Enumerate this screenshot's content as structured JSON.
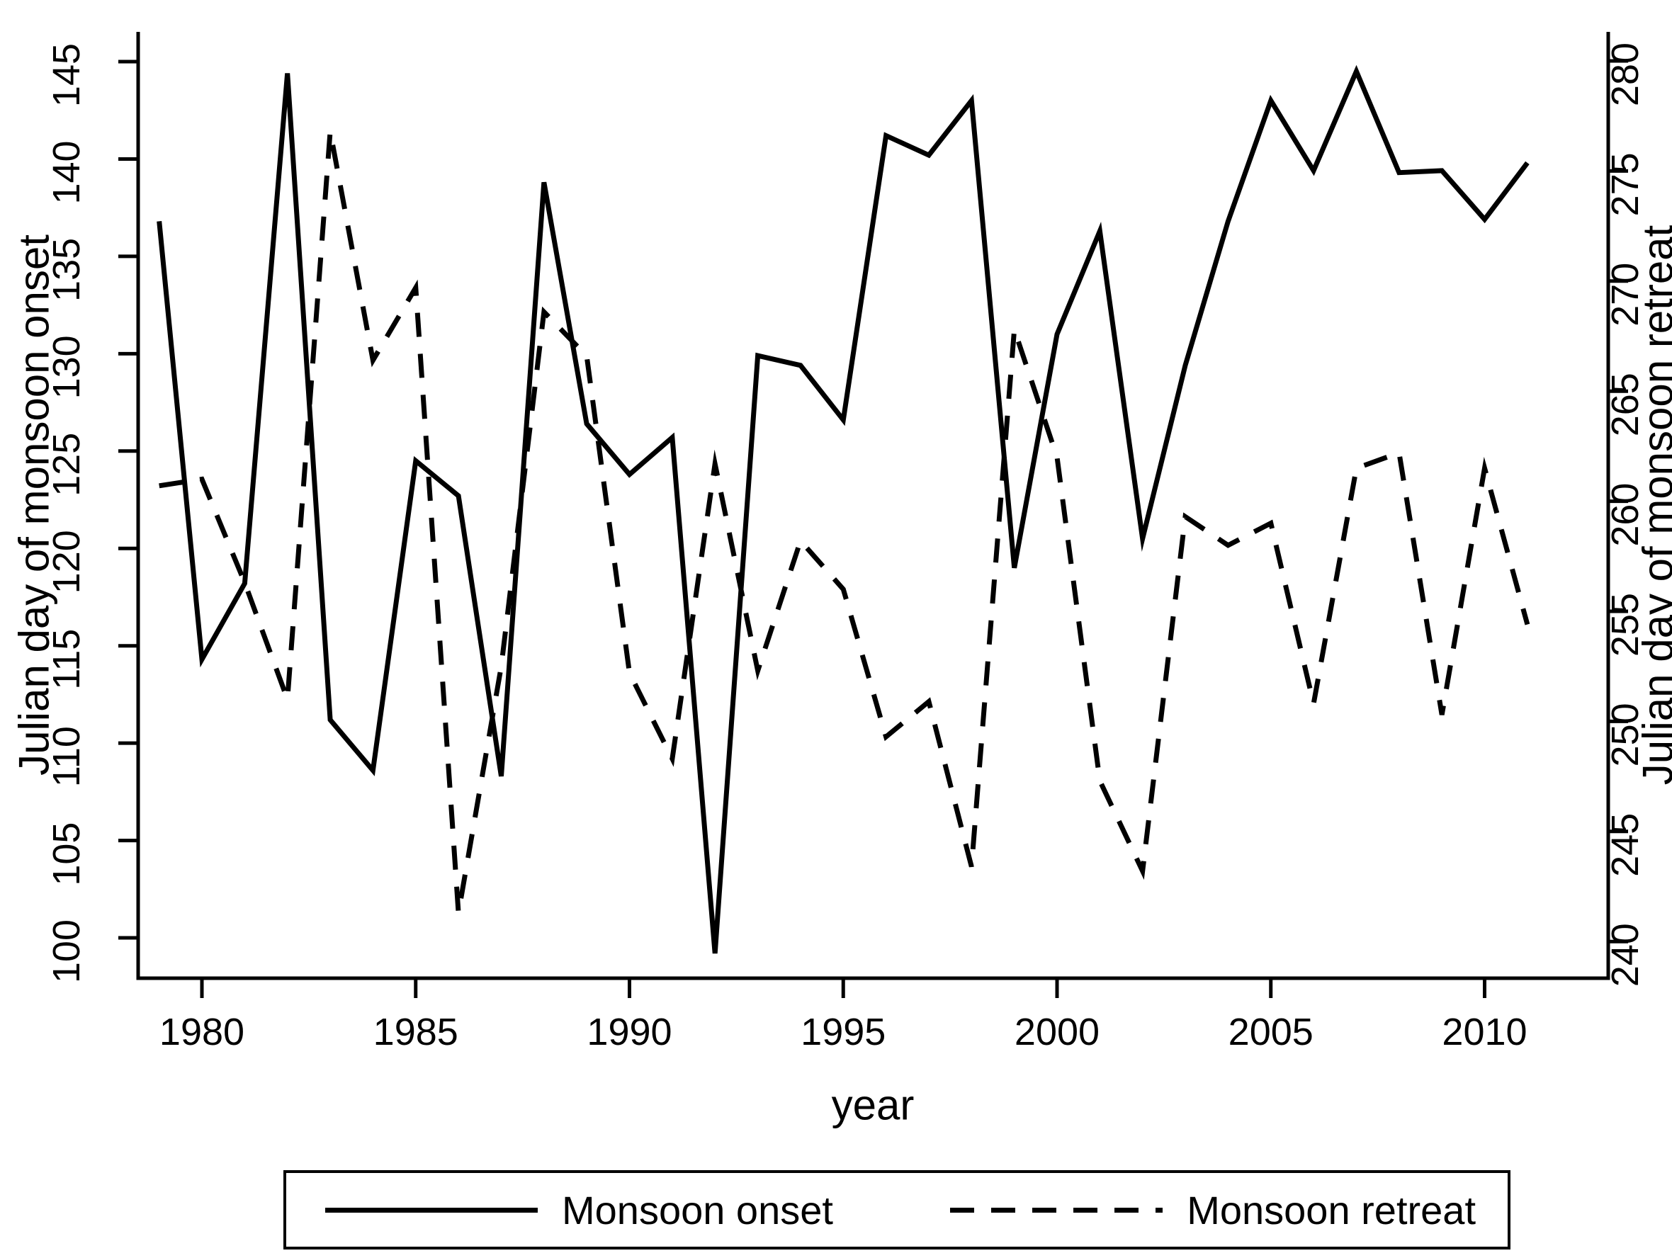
{
  "chart_data": {
    "type": "line",
    "title": "",
    "xlabel": "year",
    "ylabel_left": "Julian day of monsoon onset",
    "ylabel_right": "Julian day of monsoon retreat",
    "x": [
      1979,
      1980,
      1981,
      1982,
      1983,
      1984,
      1985,
      1986,
      1987,
      1988,
      1989,
      1990,
      1991,
      1992,
      1993,
      1994,
      1995,
      1996,
      1997,
      1998,
      1999,
      2000,
      2001,
      2002,
      2003,
      2004,
      2005,
      2006,
      2007,
      2008,
      2009,
      2010,
      2011
    ],
    "series": [
      {
        "name": "Monsoon onset",
        "axis": "left",
        "line_style": "solid",
        "values": [
          136.8,
          114.3,
          118.2,
          144.4,
          111.2,
          108.6,
          124.5,
          122.7,
          108.3,
          138.8,
          126.4,
          123.8,
          125.7,
          99.2,
          129.9,
          129.4,
          126.6,
          141.2,
          140.2,
          143.0,
          119.0,
          131.0,
          136.3,
          120.5,
          129.4,
          136.8,
          143.0,
          139.4,
          144.5,
          139.3,
          139.4,
          136.9,
          139.8
        ]
      },
      {
        "name": "Monsoon retreat",
        "axis": "right",
        "line_style": "dashed",
        "values": [
          260.7,
          261.0,
          256.3,
          251.0,
          276.8,
          266.4,
          269.7,
          241.3,
          252.5,
          268.6,
          266.6,
          252.2,
          248.3,
          261.7,
          252.3,
          258.2,
          256.0,
          249.3,
          250.9,
          243.4,
          267.8,
          262.0,
          247.3,
          243.2,
          259.3,
          258.0,
          259.0,
          250.8,
          261.5,
          262.2,
          250.3,
          261.5,
          254.4
        ]
      }
    ],
    "xticks": [
      1980,
      1985,
      1990,
      1995,
      2000,
      2005,
      2010
    ],
    "yticks_left": [
      100,
      105,
      110,
      115,
      120,
      125,
      130,
      135,
      140,
      145
    ],
    "yticks_right": [
      240,
      245,
      250,
      255,
      260,
      265,
      270,
      275,
      280
    ],
    "xlim": [
      1979,
      2011
    ],
    "ylim_left": [
      100,
      145
    ],
    "ylim_right": [
      240,
      280
    ],
    "grid": false,
    "legend_position": "bottom",
    "colors": {
      "line": "#000000",
      "background": "#ffffff"
    }
  }
}
